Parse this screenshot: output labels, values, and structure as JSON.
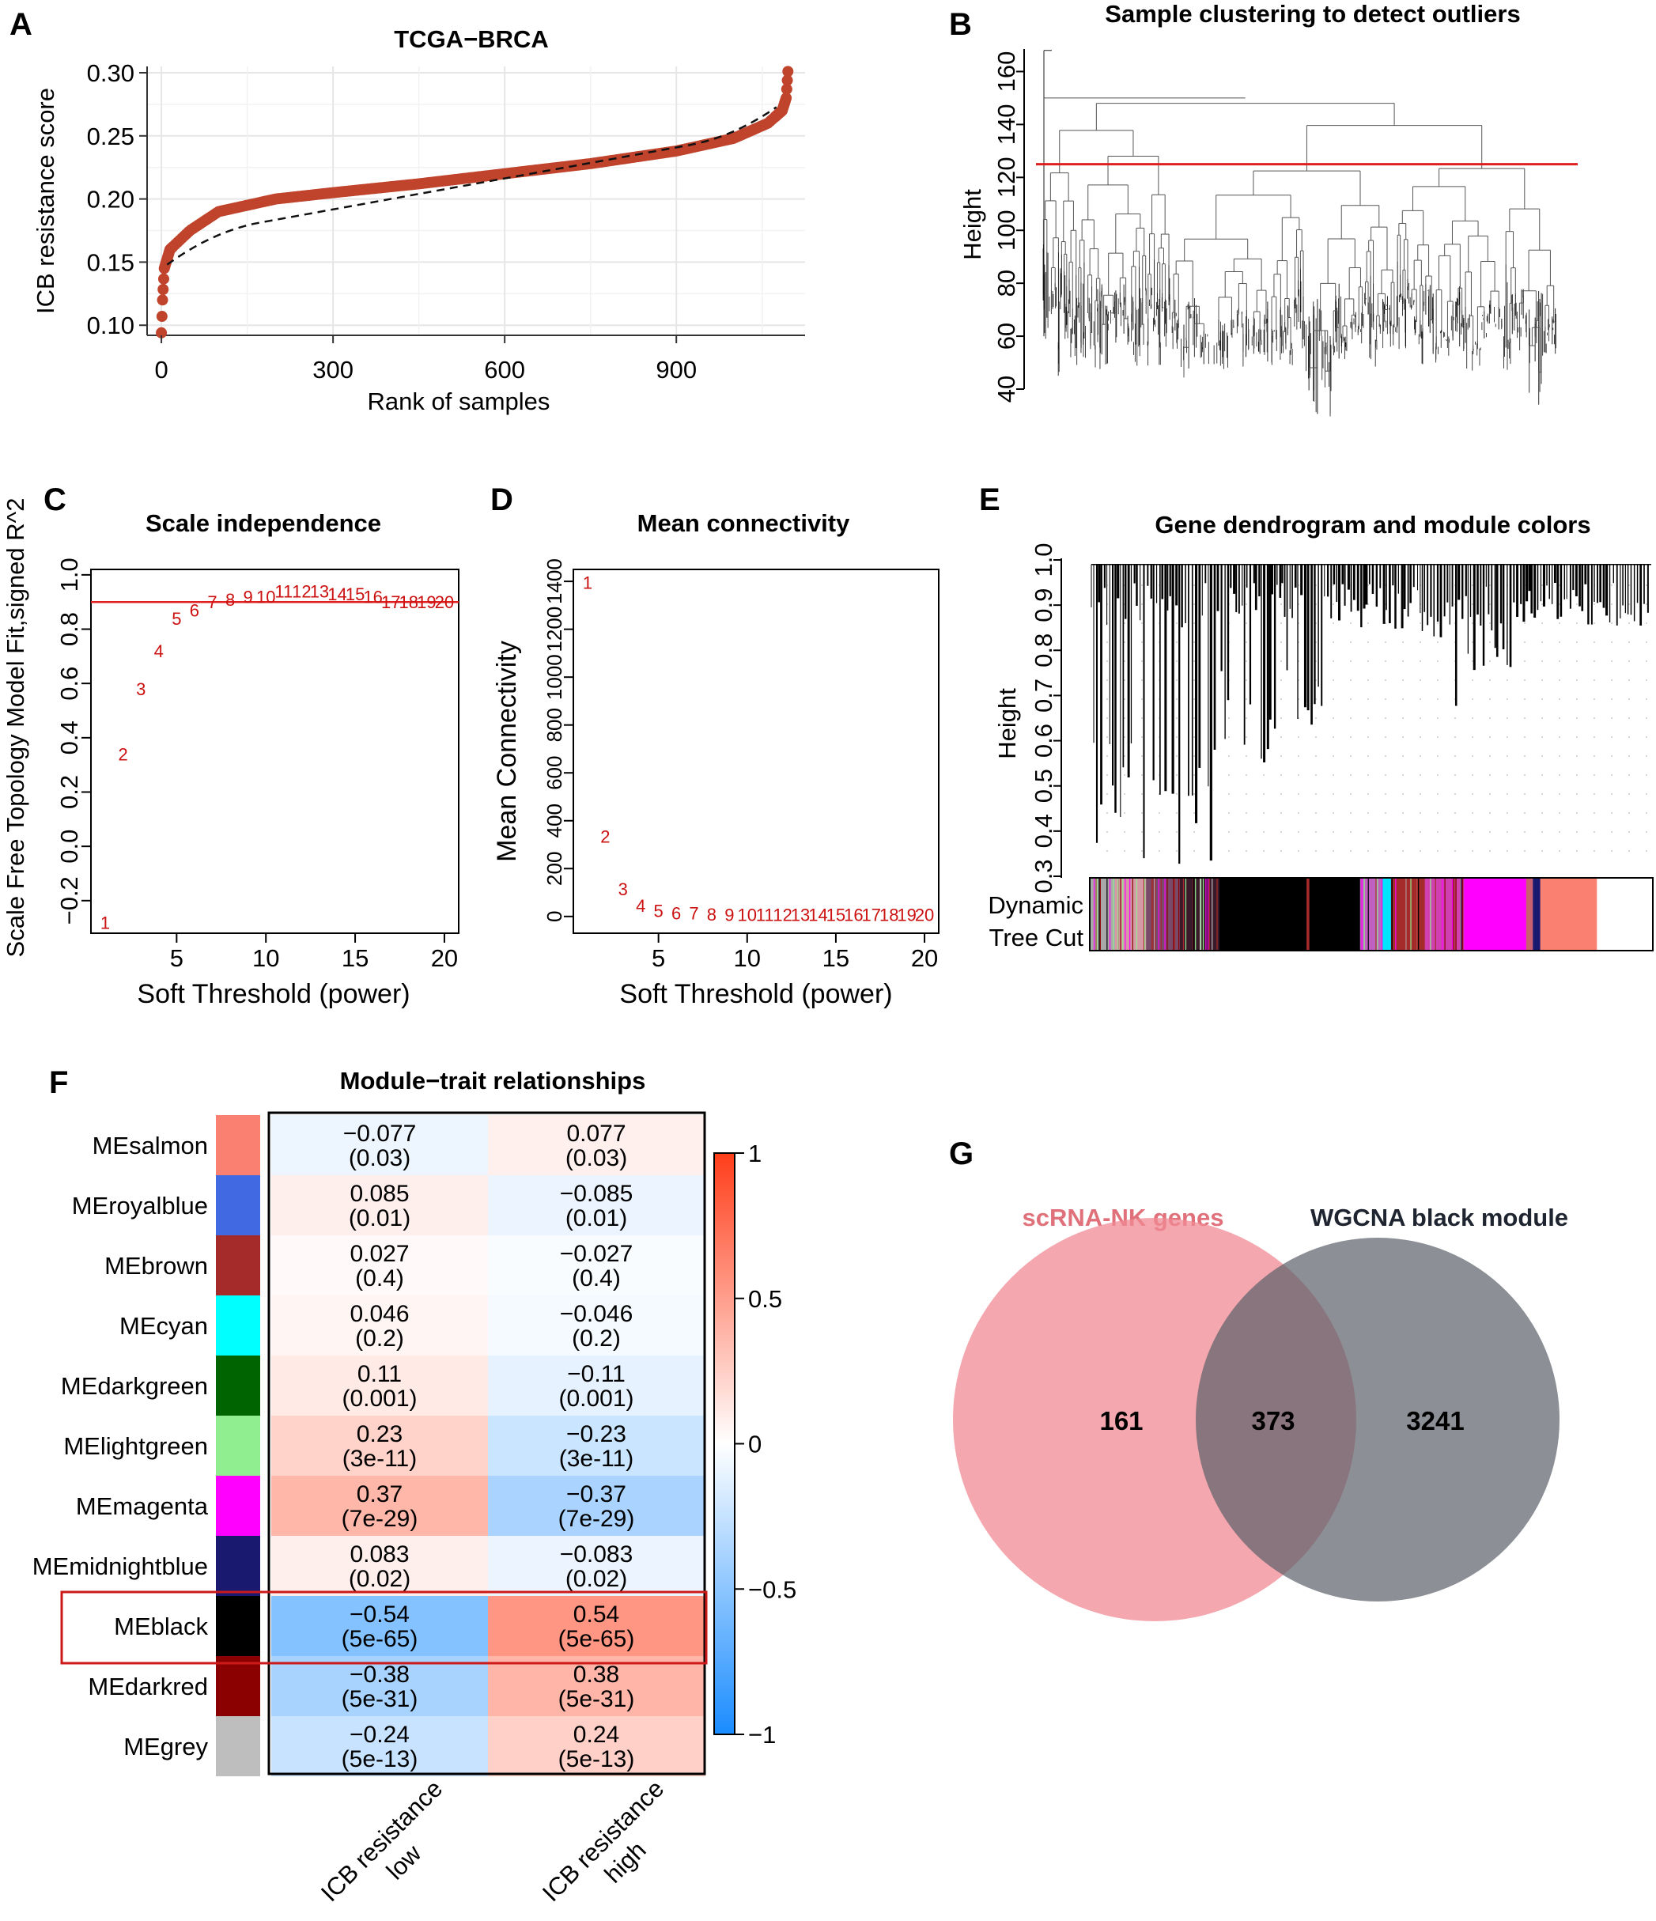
{
  "panel_letters": {
    "a": "A",
    "b": "B",
    "c": "C",
    "d": "D",
    "e": "E",
    "f": "F",
    "g": "G"
  },
  "colors": {
    "point": "#c0432c",
    "red_line": "#e02020",
    "soft_label": "#cc1111",
    "blue": "#1a8cff",
    "red": "#ff3d1a",
    "venn_left": "#f08a94",
    "venn_right": "#5b6068",
    "venn_left_title": "#e0707a",
    "venn_right_title": "#1f2530"
  },
  "chart_data": [
    {
      "id": "A",
      "type": "scatter",
      "title": "TCGA−BRCA",
      "xlabel": "Rank of samples",
      "ylabel": "ICB resistance score",
      "xlim": [
        -25,
        1125
      ],
      "ylim": [
        0.092,
        0.305
      ],
      "xticks": [
        "0",
        "300",
        "600",
        "900"
      ],
      "xtick_values": [
        0,
        300,
        600,
        900
      ],
      "yticks": [
        "0.10",
        "0.15",
        "0.20",
        "0.25",
        "0.30"
      ],
      "ytick_values": [
        0.1,
        0.15,
        0.2,
        0.25,
        0.3
      ],
      "n_samples": 1095,
      "score_range": [
        0.094,
        0.301
      ],
      "curve_points": [
        [
          0,
          0.094
        ],
        [
          2,
          0.12
        ],
        [
          5,
          0.145
        ],
        [
          15,
          0.16
        ],
        [
          50,
          0.175
        ],
        [
          100,
          0.19
        ],
        [
          200,
          0.2
        ],
        [
          300,
          0.205
        ],
        [
          450,
          0.212
        ],
        [
          600,
          0.22
        ],
        [
          750,
          0.228
        ],
        [
          900,
          0.238
        ],
        [
          1000,
          0.248
        ],
        [
          1060,
          0.26
        ],
        [
          1085,
          0.27
        ],
        [
          1092,
          0.28
        ],
        [
          1095,
          0.301
        ]
      ],
      "trend": "dashed"
    },
    {
      "id": "B",
      "type": "dendrogram",
      "title": "Sample clustering to detect outliers",
      "ylabel": "Height",
      "ylim": [
        40,
        170
      ],
      "yticks": [
        "40",
        "60",
        "80",
        "100",
        "120",
        "140",
        "160"
      ],
      "ytick_values": [
        40,
        60,
        80,
        100,
        120,
        140,
        160
      ],
      "cut_height": 125
    },
    {
      "id": "C",
      "type": "scatter",
      "title": "Scale independence",
      "xlabel": "Soft Threshold (power)",
      "ylabel": "Scale Free Topology Model Fit,signed R^2",
      "xlim": [
        0.2,
        20.8
      ],
      "ylim": [
        -0.32,
        1.02
      ],
      "xticks": [
        "5",
        "10",
        "15",
        "20"
      ],
      "xtick_values": [
        5,
        10,
        15,
        20
      ],
      "yticks": [
        "−0.2",
        "0.0",
        "0.2",
        "0.4",
        "0.6",
        "0.8",
        "1.0"
      ],
      "ytick_values": [
        -0.2,
        0,
        0.2,
        0.4,
        0.6,
        0.8,
        1.0
      ],
      "threshold": 0.9,
      "x": [
        1,
        2,
        3,
        4,
        5,
        6,
        7,
        8,
        9,
        10,
        11,
        12,
        13,
        14,
        15,
        16,
        17,
        18,
        19,
        20
      ],
      "y": [
        -0.28,
        0.34,
        0.58,
        0.72,
        0.84,
        0.87,
        0.9,
        0.91,
        0.92,
        0.92,
        0.94,
        0.94,
        0.94,
        0.93,
        0.93,
        0.92,
        0.9,
        0.9,
        0.9,
        0.9
      ],
      "point_labels": [
        "1",
        "2",
        "3",
        "4",
        "5",
        "6",
        "7",
        "8",
        "9",
        "10",
        "11",
        "12",
        "13",
        "14",
        "15",
        "16",
        "17",
        "18",
        "19",
        "20"
      ]
    },
    {
      "id": "D",
      "type": "scatter",
      "title": "Mean connectivity",
      "xlabel": "Soft Threshold (power)",
      "ylabel": "Mean Connectivity",
      "xlim": [
        0.2,
        20.8
      ],
      "ylim": [
        -70,
        1450
      ],
      "xticks": [
        "5",
        "10",
        "15",
        "20"
      ],
      "xtick_values": [
        5,
        10,
        15,
        20
      ],
      "yticks": [
        "0",
        "200",
        "400",
        "600",
        "800",
        "1000",
        "1200",
        "1400"
      ],
      "ytick_values": [
        0,
        200,
        400,
        600,
        800,
        1000,
        1200,
        1400
      ],
      "x": [
        1,
        2,
        3,
        4,
        5,
        6,
        7,
        8,
        9,
        10,
        11,
        12,
        13,
        14,
        15,
        16,
        17,
        18,
        19,
        20
      ],
      "y": [
        1395,
        335,
        115,
        45,
        25,
        15,
        15,
        10,
        8,
        8,
        8,
        8,
        8,
        8,
        8,
        8,
        8,
        8,
        8,
        8
      ],
      "point_labels": [
        "1",
        "2",
        "3",
        "4",
        "5",
        "6",
        "7",
        "8",
        "9",
        "10",
        "11",
        "12",
        "13",
        "14",
        "15",
        "16",
        "17",
        "18",
        "19",
        "20"
      ]
    },
    {
      "id": "E",
      "type": "dendrogram",
      "title": "Gene dendrogram and module colors",
      "ylabel": "Height",
      "ylim": [
        0.3,
        1.0
      ],
      "yticks": [
        "0.3",
        "0.4",
        "0.5",
        "0.6",
        "0.7",
        "0.8",
        "0.9",
        "1.0"
      ],
      "ytick_values": [
        0.3,
        0.4,
        0.5,
        0.6,
        0.7,
        0.8,
        0.9,
        1.0
      ],
      "color_bar_label": [
        "Dynamic",
        "Tree Cut"
      ],
      "module_segments": [
        {
          "color": "#a8a8a8",
          "frac": 0.045
        },
        {
          "color": "#d59aa6",
          "frac": 0.055
        },
        {
          "color": "#7a4a6a",
          "frac": 0.06
        },
        {
          "color": "#3a1a2a",
          "frac": 0.07
        },
        {
          "color": "#000000",
          "frac": 0.155
        },
        {
          "color": "#a52a2a",
          "frac": 0.005
        },
        {
          "color": "#000000",
          "frac": 0.09
        },
        {
          "color": "#c060c0",
          "frac": 0.04
        },
        {
          "color": "#00e5ff",
          "frac": 0.015
        },
        {
          "color": "#a52a2a",
          "frac": 0.06
        },
        {
          "color": "#d040b0",
          "frac": 0.07
        },
        {
          "color": "#ff00ff",
          "frac": 0.11
        },
        {
          "color": "#c86070",
          "frac": 0.012
        },
        {
          "color": "#191970",
          "frac": 0.013
        },
        {
          "color": "#fa8072",
          "frac": 0.1
        }
      ]
    },
    {
      "id": "F",
      "type": "heatmap",
      "title": "Module−trait relationships",
      "rows": [
        {
          "name": "MEsalmon",
          "color": "#fa8072",
          "values": [
            "−0.077",
            "0.077"
          ],
          "pvalues": [
            "(0.03)",
            "(0.03)"
          ],
          "r": [
            -0.077,
            0.077
          ]
        },
        {
          "name": "MEroyalblue",
          "color": "#4169e1",
          "values": [
            "0.085",
            "−0.085"
          ],
          "pvalues": [
            "(0.01)",
            "(0.01)"
          ],
          "r": [
            0.085,
            -0.085
          ]
        },
        {
          "name": "MEbrown",
          "color": "#a52a2a",
          "values": [
            "0.027",
            "−0.027"
          ],
          "pvalues": [
            "(0.4)",
            "(0.4)"
          ],
          "r": [
            0.027,
            -0.027
          ]
        },
        {
          "name": "MEcyan",
          "color": "#00ffff",
          "values": [
            "0.046",
            "−0.046"
          ],
          "pvalues": [
            "(0.2)",
            "(0.2)"
          ],
          "r": [
            0.046,
            -0.046
          ]
        },
        {
          "name": "MEdarkgreen",
          "color": "#006400",
          "values": [
            "0.11",
            "−0.11"
          ],
          "pvalues": [
            "(0.001)",
            "(0.001)"
          ],
          "r": [
            0.11,
            -0.11
          ]
        },
        {
          "name": "MElightgreen",
          "color": "#90ee90",
          "values": [
            "0.23",
            "−0.23"
          ],
          "pvalues": [
            "(3e-11)",
            "(3e-11)"
          ],
          "r": [
            0.23,
            -0.23
          ]
        },
        {
          "name": "MEmagenta",
          "color": "#ff00ff",
          "values": [
            "0.37",
            "−0.37"
          ],
          "pvalues": [
            "(7e-29)",
            "(7e-29)"
          ],
          "r": [
            0.37,
            -0.37
          ]
        },
        {
          "name": "MEmidnightblue",
          "color": "#191970",
          "values": [
            "0.083",
            "−0.083"
          ],
          "pvalues": [
            "(0.02)",
            "(0.02)"
          ],
          "r": [
            0.083,
            -0.083
          ]
        },
        {
          "name": "MEblack",
          "color": "#000000",
          "values": [
            "−0.54",
            "0.54"
          ],
          "pvalues": [
            "(5e-65)",
            "(5e-65)"
          ],
          "r": [
            -0.54,
            0.54
          ]
        },
        {
          "name": "MEdarkred",
          "color": "#8b0000",
          "values": [
            "−0.38",
            "0.38"
          ],
          "pvalues": [
            "(5e-31)",
            "(5e-31)"
          ],
          "r": [
            -0.38,
            0.38
          ]
        },
        {
          "name": "MEgrey",
          "color": "#bebebe",
          "values": [
            "−0.24",
            "0.24"
          ],
          "pvalues": [
            "(5e-13)",
            "(5e-13)"
          ],
          "r": [
            -0.24,
            0.24
          ]
        }
      ],
      "columns": [
        [
          "ICB resistance",
          "low"
        ],
        [
          "ICB resistance",
          "high"
        ]
      ],
      "highlight_row": "MEblack",
      "colorbar_ticks": [
        "1",
        "0.5",
        "0",
        "−0.5",
        "−1"
      ],
      "colorbar_values": [
        1,
        0.5,
        0,
        -0.5,
        -1
      ]
    },
    {
      "id": "G",
      "type": "venn",
      "sets": [
        {
          "name": "scRNA-NK genes",
          "only": "161"
        },
        {
          "name": "WGCNA black module",
          "only": "3241"
        }
      ],
      "intersection": "373"
    }
  ]
}
